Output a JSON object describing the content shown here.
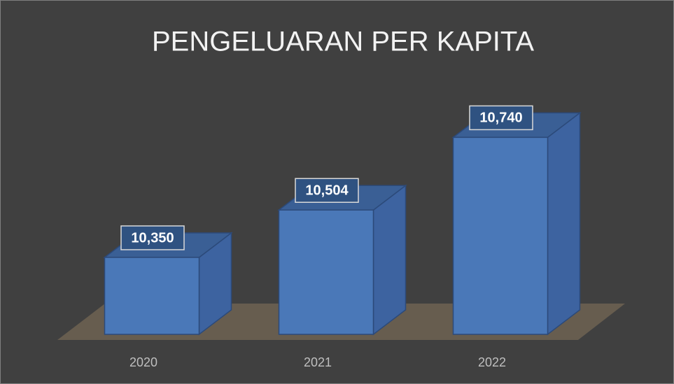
{
  "chart_data": {
    "type": "bar3d",
    "title": "PENGELUARAN PER KAPITA",
    "categories": [
      "2020",
      "2021",
      "2022"
    ],
    "values": [
      10350,
      10504,
      10740
    ],
    "value_labels": [
      "10,350",
      "10,504",
      "10,740"
    ],
    "color": "#4a78b8",
    "ylim": [
      10100,
      10800
    ]
  }
}
